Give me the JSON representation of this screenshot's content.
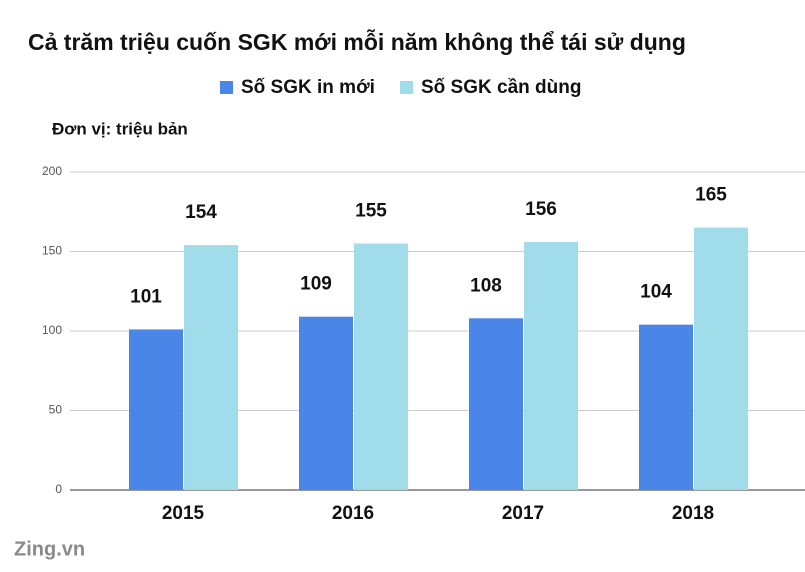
{
  "chart_data": {
    "type": "bar",
    "title": "Cả trăm triệu cuốn SGK mới mỗi năm không thể tái sử dụng",
    "unit_label": "Đơn vị: triệu bản",
    "watermark": "Zing.vn",
    "categories": [
      "2015",
      "2016",
      "2017",
      "2018"
    ],
    "series": [
      {
        "name": "Số SGK in mới",
        "color": "#4a86e8",
        "values": [
          101,
          109,
          108,
          104
        ]
      },
      {
        "name": "Số SGK cần dùng",
        "color": "#a0dcea",
        "values": [
          154,
          155,
          156,
          165
        ]
      }
    ],
    "ylim": [
      0,
      200
    ],
    "yticks": [
      0,
      50,
      100,
      150,
      200
    ],
    "grid": true,
    "legend": "top"
  }
}
